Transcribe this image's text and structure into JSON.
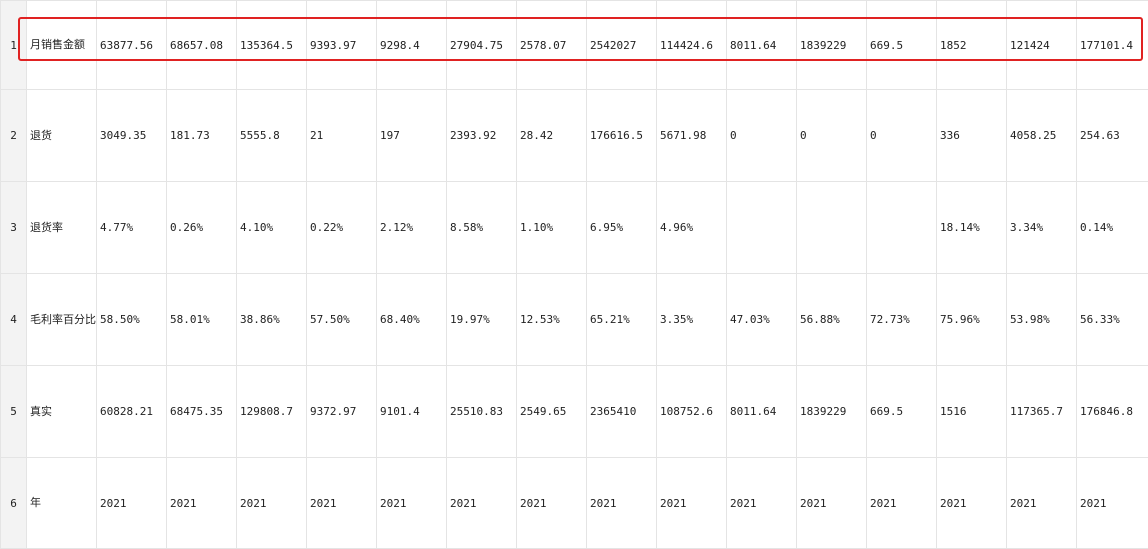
{
  "colors": {
    "row_number": "#d42a2a",
    "highlight_border": "#e02222",
    "grid_line": "#e4e4e4"
  },
  "rows": [
    {
      "num": "1",
      "label": "月销售金额",
      "cells": [
        "63877.56",
        "68657.08",
        "135364.5",
        "9393.97",
        "9298.4",
        "27904.75",
        "2578.07",
        "2542027",
        "114424.6",
        "8011.64",
        "1839229",
        "669.5",
        "1852",
        "121424",
        "177101.4"
      ]
    },
    {
      "num": "2",
      "label": "退货",
      "cells": [
        "3049.35",
        "181.73",
        "5555.8",
        "21",
        "197",
        "2393.92",
        "28.42",
        "176616.5",
        "5671.98",
        "0",
        "0",
        "0",
        "336",
        "4058.25",
        "254.63"
      ]
    },
    {
      "num": "3",
      "label": "退货率",
      "cells": [
        "4.77%",
        "0.26%",
        "4.10%",
        "0.22%",
        "2.12%",
        "8.58%",
        "1.10%",
        "6.95%",
        "4.96%",
        "",
        "",
        "",
        "18.14%",
        "3.34%",
        "0.14%"
      ]
    },
    {
      "num": "4",
      "label": "毛利率百分比",
      "cells": [
        "58.50%",
        "58.01%",
        "38.86%",
        "57.50%",
        "68.40%",
        "19.97%",
        "12.53%",
        "65.21%",
        "3.35%",
        "47.03%",
        "56.88%",
        "72.73%",
        "75.96%",
        "53.98%",
        "56.33%"
      ]
    },
    {
      "num": "5",
      "label": "真实",
      "cells": [
        "60828.21",
        "68475.35",
        "129808.7",
        "9372.97",
        "9101.4",
        "25510.83",
        "2549.65",
        "2365410",
        "108752.6",
        "8011.64",
        "1839229",
        "669.5",
        "1516",
        "117365.7",
        "176846.8"
      ]
    },
    {
      "num": "6",
      "label": "年",
      "cells": [
        "2021",
        "2021",
        "2021",
        "2021",
        "2021",
        "2021",
        "2021",
        "2021",
        "2021",
        "2021",
        "2021",
        "2021",
        "2021",
        "2021",
        "2021"
      ]
    }
  ]
}
